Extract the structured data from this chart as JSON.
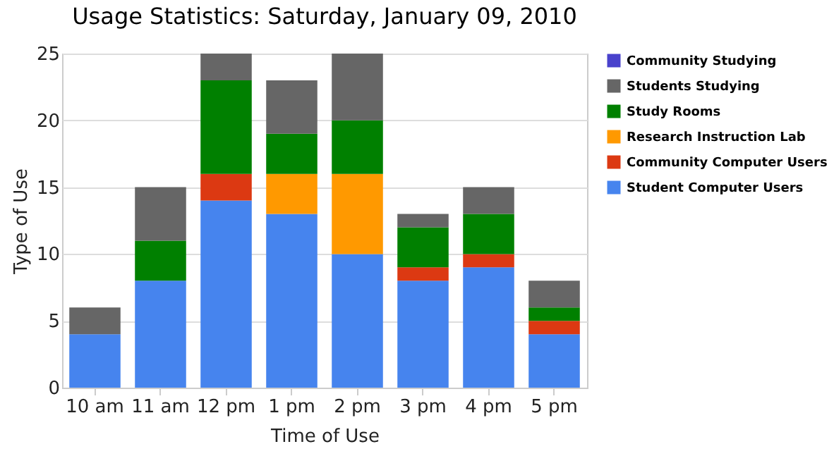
{
  "chart_data": {
    "type": "bar",
    "title": "Usage Statistics: Saturday, January 09, 2010",
    "xlabel": "Time of Use",
    "ylabel": "Type of Use",
    "categories": [
      "10 am",
      "11 am",
      "12 pm",
      "1 pm",
      "2 pm",
      "3 pm",
      "4 pm",
      "5 pm"
    ],
    "stacked": true,
    "ylim": [
      0,
      25
    ],
    "yticks": [
      0,
      5,
      10,
      15,
      20,
      25
    ],
    "grid": "y",
    "legend": "right",
    "series": [
      {
        "name": "Student Computer Users",
        "color": "#4684ee",
        "values": [
          4,
          8,
          14,
          13,
          10,
          8,
          9,
          4
        ]
      },
      {
        "name": "Community Computer Users",
        "color": "#dc3912",
        "values": [
          0,
          0,
          2,
          0,
          0,
          1,
          1,
          1
        ]
      },
      {
        "name": "Research Instruction Lab",
        "color": "#ff9900",
        "values": [
          0,
          0,
          0,
          3,
          6,
          0,
          0,
          0
        ]
      },
      {
        "name": "Study Rooms",
        "color": "#008000",
        "values": [
          0,
          3,
          7,
          3,
          4,
          3,
          3,
          1
        ]
      },
      {
        "name": "Students Studying",
        "color": "#666666",
        "values": [
          2,
          4,
          2,
          4,
          5,
          1,
          2,
          2
        ]
      },
      {
        "name": "Community Studying",
        "color": "#4942cc",
        "values": [
          0,
          0,
          0,
          0,
          0,
          0,
          0,
          0
        ]
      }
    ]
  }
}
